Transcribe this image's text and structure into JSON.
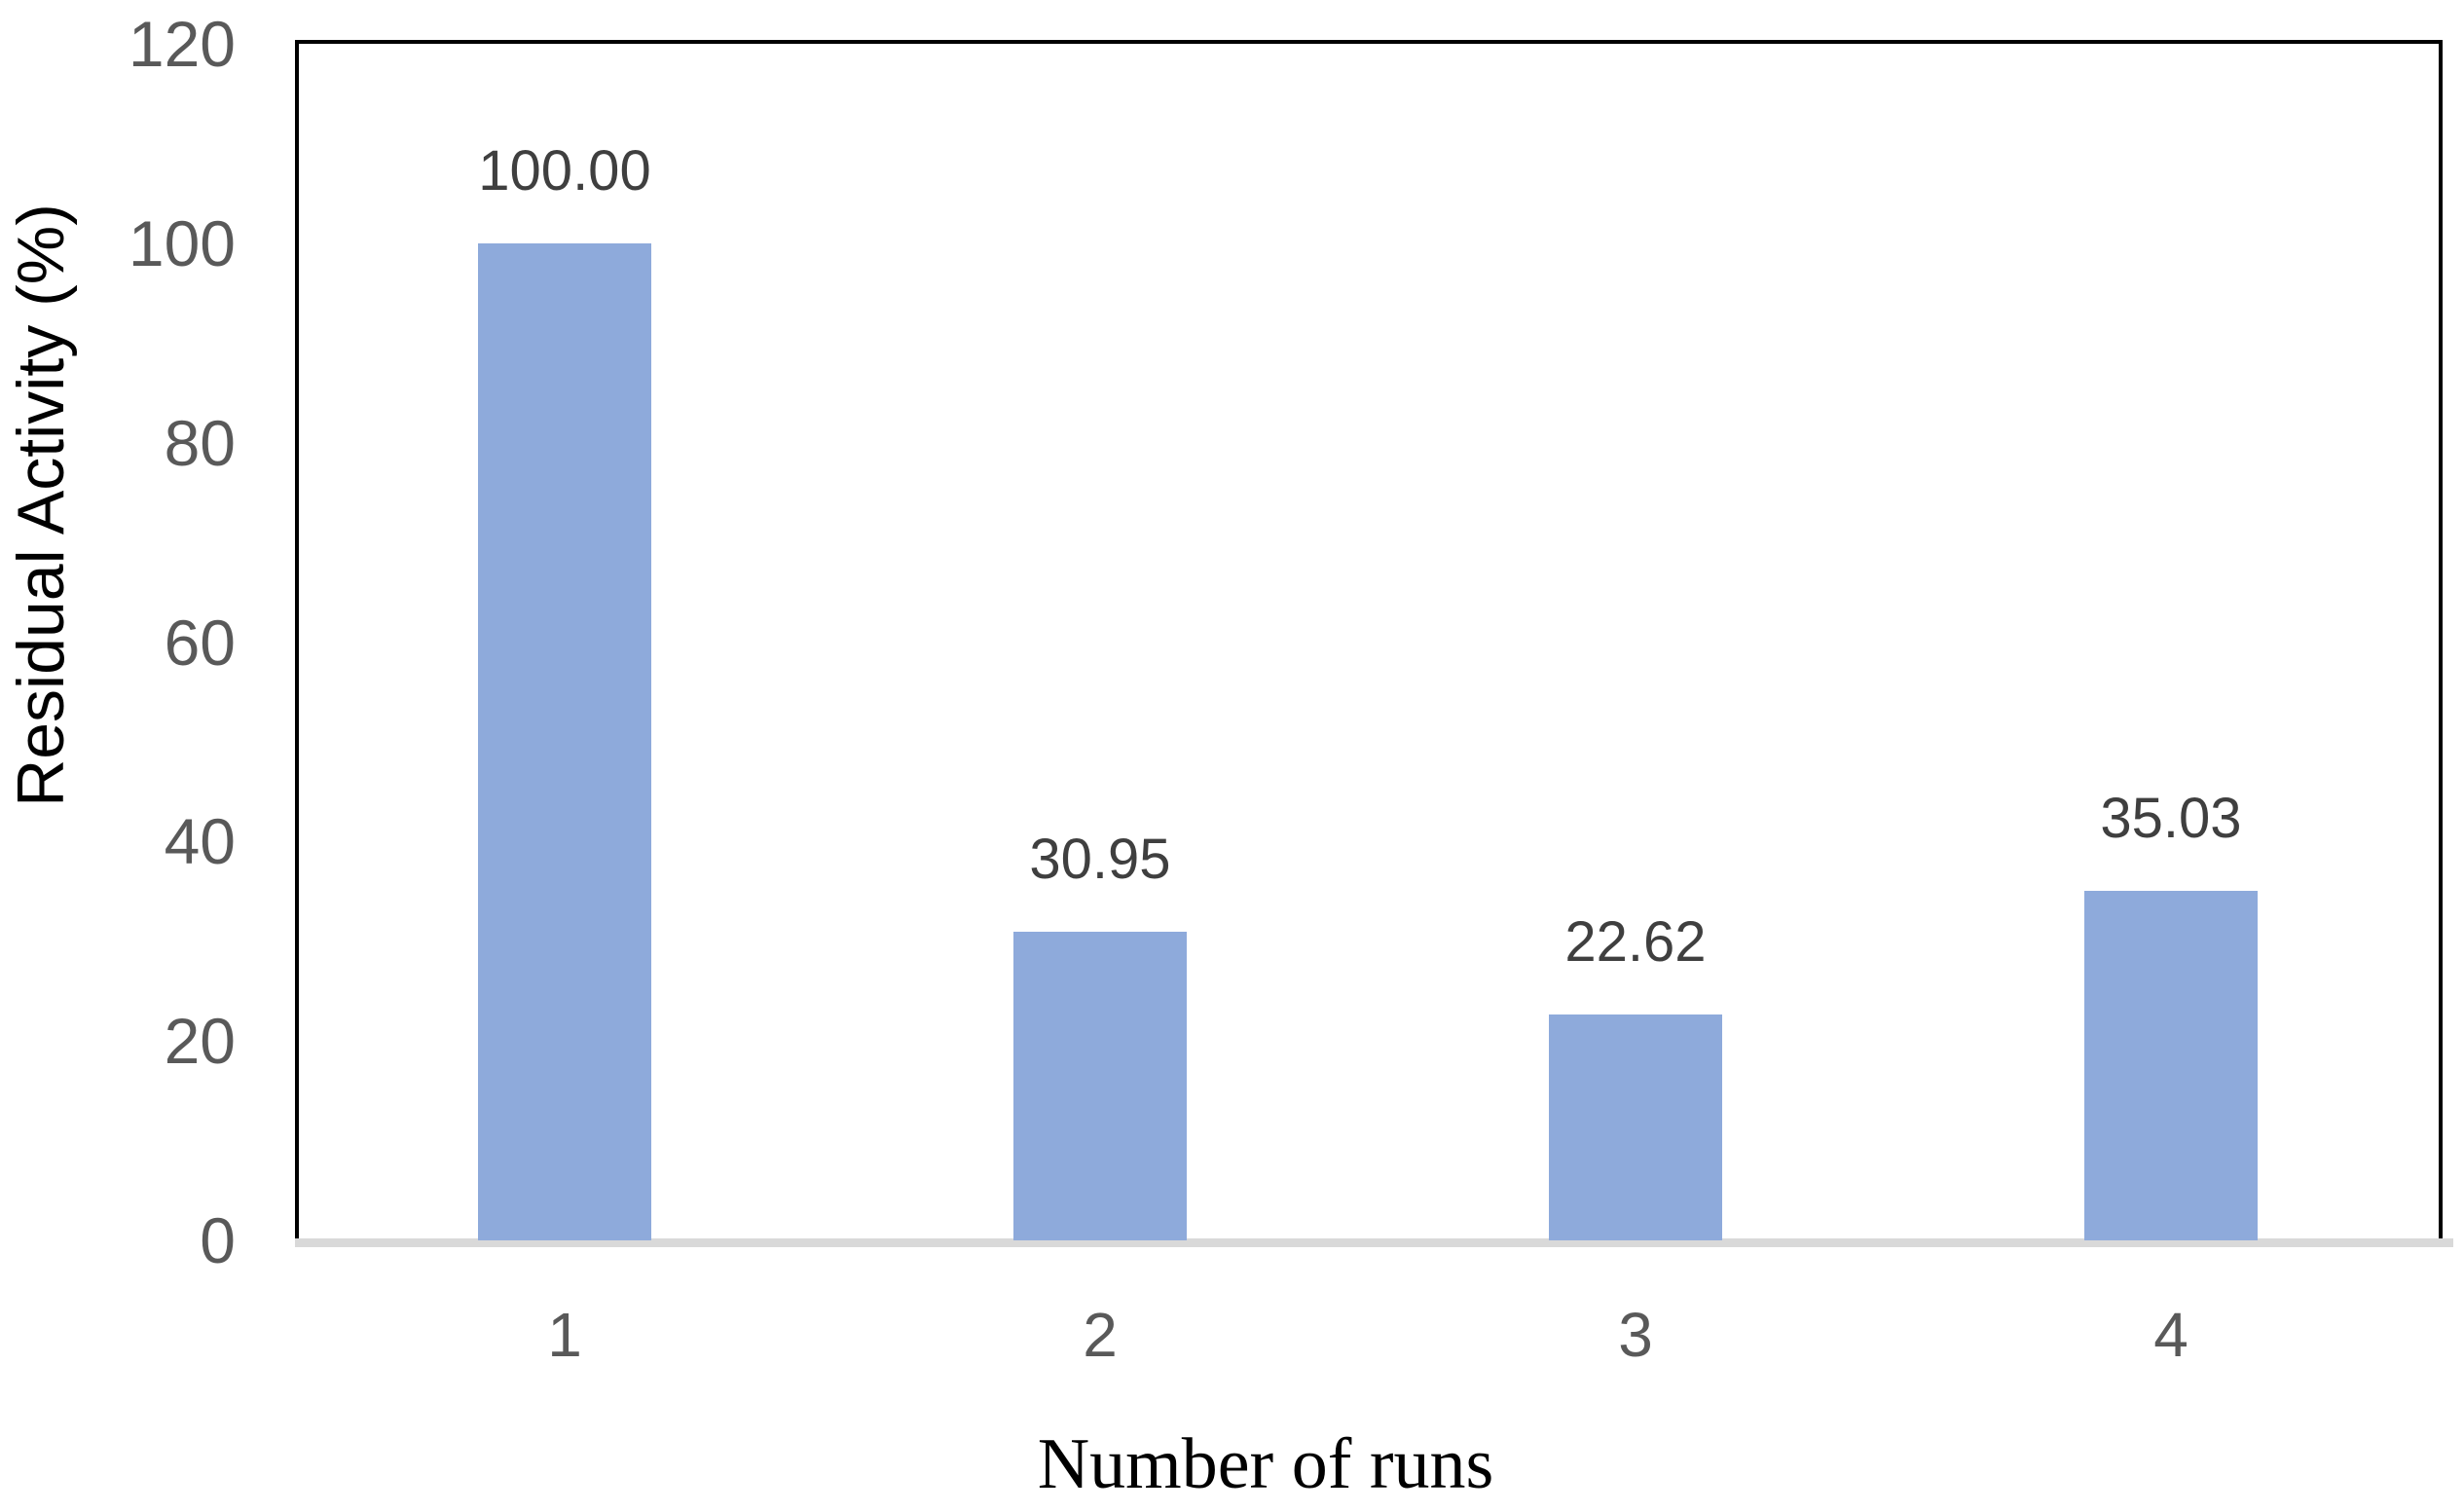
{
  "chart_data": {
    "type": "bar",
    "title": "",
    "categories": [
      "1",
      "2",
      "3",
      "4"
    ],
    "values": [
      100.0,
      30.95,
      22.62,
      35.03
    ],
    "data_labels": [
      "100.00",
      "30.95",
      "22.62",
      "35.03"
    ],
    "xlabel": "Number of runs",
    "ylabel": "Residual Activity (%)",
    "ylim": [
      0,
      120
    ],
    "yticks": [
      120,
      100,
      80,
      60,
      40,
      20,
      0
    ],
    "ytick_labels": [
      "120",
      "100",
      "80",
      "60",
      "40",
      "20",
      "0"
    ],
    "grid": false,
    "legend": false,
    "colors": {
      "bar_fill": "#8EAADB",
      "tick_label": "#595959",
      "category_label": "#595959",
      "data_label": "#3F3F3F",
      "axis_frame": "#000000",
      "baseline_band": "#D9D9D9"
    }
  }
}
